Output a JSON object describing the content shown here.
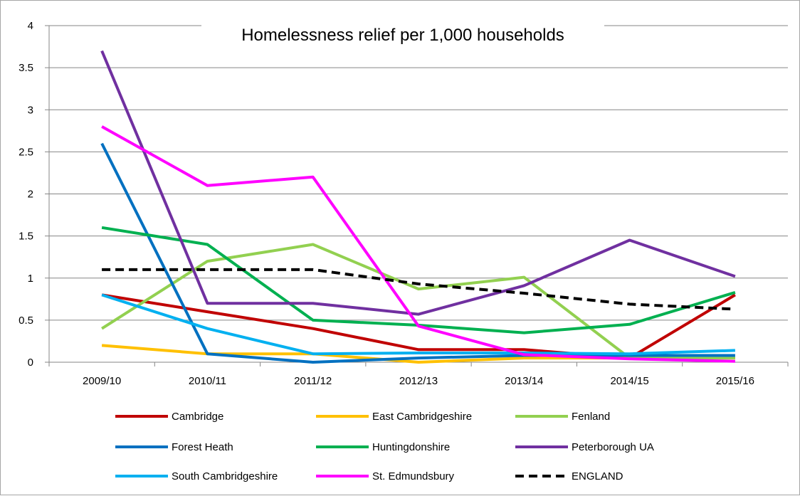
{
  "chart_data": {
    "type": "line",
    "title": "Homelessness relief per 1,000 households",
    "xlabel": "",
    "ylabel": "",
    "categories": [
      "2009/10",
      "2010/11",
      "2011/12",
      "2012/13",
      "2013/14",
      "2014/15",
      "2015/16"
    ],
    "ylim": [
      0,
      4
    ],
    "yticks": [
      "0",
      "0.5",
      "1",
      "1.5",
      "2",
      "2.5",
      "3",
      "3.5",
      "4"
    ],
    "grid": true,
    "legend": "bottom",
    "series": [
      {
        "name": "Cambridge",
        "color": "#c00000",
        "dashed": false,
        "values": [
          0.8,
          0.6,
          0.4,
          0.15,
          0.15,
          0.05,
          0.8
        ]
      },
      {
        "name": "East Cambridgeshire",
        "color": "#ffc000",
        "dashed": false,
        "values": [
          0.2,
          0.1,
          0.1,
          0.0,
          0.05,
          0.05,
          0.05
        ]
      },
      {
        "name": "Fenland",
        "color": "#92d050",
        "dashed": false,
        "values": [
          0.4,
          1.2,
          1.4,
          0.87,
          1.01,
          0.05,
          0.05
        ]
      },
      {
        "name": "Forest Heath",
        "color": "#0070c0",
        "dashed": false,
        "values": [
          2.6,
          0.1,
          0.0,
          0.05,
          0.08,
          0.08,
          0.08
        ]
      },
      {
        "name": "Huntingdonshire",
        "color": "#00b050",
        "dashed": false,
        "values": [
          1.6,
          1.4,
          0.5,
          0.44,
          0.35,
          0.45,
          0.83
        ]
      },
      {
        "name": "Peterborough UA",
        "color": "#7030a0",
        "dashed": false,
        "values": [
          3.7,
          0.7,
          0.7,
          0.57,
          0.91,
          1.45,
          1.02
        ]
      },
      {
        "name": "South Cambridgeshire",
        "color": "#00b0f0",
        "dashed": false,
        "values": [
          0.8,
          0.4,
          0.1,
          0.11,
          0.11,
          0.1,
          0.14
        ]
      },
      {
        "name": "St. Edmundsbury",
        "color": "#ff00ff",
        "dashed": false,
        "values": [
          2.8,
          2.1,
          2.2,
          0.43,
          0.09,
          0.04,
          0.01
        ]
      },
      {
        "name": "ENGLAND",
        "color": "#000000",
        "dashed": true,
        "values": [
          1.1,
          1.1,
          1.1,
          0.93,
          0.82,
          0.69,
          0.63
        ]
      }
    ]
  }
}
